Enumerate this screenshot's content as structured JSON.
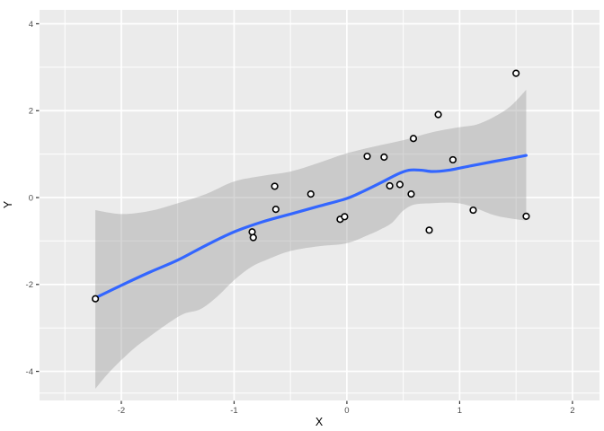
{
  "chart_data": {
    "type": "scatter",
    "title": "",
    "xlabel": "X",
    "ylabel": "Y",
    "legend": "none",
    "grid": true,
    "panel_style": "ggplot2-grey",
    "xlim": [
      -2.725,
      2.24
    ],
    "ylim": [
      -4.67,
      4.32
    ],
    "x_major_ticks": [
      -2,
      -1,
      0,
      1,
      2
    ],
    "y_major_ticks": [
      -4,
      -2,
      0,
      2,
      4
    ],
    "x_minor_ticks": [
      -2.5,
      -1.5,
      -0.5,
      0.5,
      1.5
    ],
    "y_minor_ticks": [
      -4.5,
      -3,
      -1,
      1,
      3
    ],
    "points": [
      [
        -2.23,
        -2.33
      ],
      [
        -0.84,
        -0.79
      ],
      [
        -0.83,
        -0.92
      ],
      [
        -0.64,
        0.26
      ],
      [
        -0.63,
        -0.27
      ],
      [
        -0.32,
        0.08
      ],
      [
        -0.06,
        -0.5
      ],
      [
        -0.02,
        -0.44
      ],
      [
        0.18,
        0.95
      ],
      [
        0.33,
        0.93
      ],
      [
        0.38,
        0.27
      ],
      [
        0.47,
        0.3
      ],
      [
        0.57,
        0.08
      ],
      [
        0.59,
        1.36
      ],
      [
        0.73,
        -0.75
      ],
      [
        0.81,
        1.91
      ],
      [
        0.94,
        0.87
      ],
      [
        1.12,
        -0.29
      ],
      [
        1.5,
        2.86
      ],
      [
        1.59,
        -0.43
      ]
    ],
    "smooth": {
      "method": "loess",
      "line": [
        [
          -2.23,
          -2.31
        ],
        [
          -2.0,
          -2.02
        ],
        [
          -1.75,
          -1.72
        ],
        [
          -1.5,
          -1.44
        ],
        [
          -1.25,
          -1.1
        ],
        [
          -1.0,
          -0.79
        ],
        [
          -0.75,
          -0.56
        ],
        [
          -0.5,
          -0.38
        ],
        [
          -0.25,
          -0.2
        ],
        [
          0.0,
          -0.02
        ],
        [
          0.15,
          0.15
        ],
        [
          0.3,
          0.34
        ],
        [
          0.45,
          0.54
        ],
        [
          0.55,
          0.63
        ],
        [
          0.66,
          0.63
        ],
        [
          0.76,
          0.6
        ],
        [
          0.9,
          0.63
        ],
        [
          1.1,
          0.73
        ],
        [
          1.3,
          0.83
        ],
        [
          1.45,
          0.9
        ],
        [
          1.59,
          0.97
        ]
      ],
      "ribbon_upper": [
        [
          -2.23,
          -0.29
        ],
        [
          -2.0,
          -0.38
        ],
        [
          -1.75,
          -0.31
        ],
        [
          -1.5,
          -0.13
        ],
        [
          -1.25,
          0.08
        ],
        [
          -1.0,
          0.37
        ],
        [
          -0.75,
          0.5
        ],
        [
          -0.5,
          0.6
        ],
        [
          -0.25,
          0.8
        ],
        [
          0.0,
          1.02
        ],
        [
          0.25,
          1.18
        ],
        [
          0.5,
          1.32
        ],
        [
          0.75,
          1.5
        ],
        [
          1.0,
          1.62
        ],
        [
          1.15,
          1.68
        ],
        [
          1.3,
          1.85
        ],
        [
          1.45,
          2.1
        ],
        [
          1.59,
          2.48
        ]
      ],
      "ribbon_lower": [
        [
          -2.23,
          -4.4
        ],
        [
          -2.1,
          -4.0
        ],
        [
          -1.9,
          -3.5
        ],
        [
          -1.75,
          -3.2
        ],
        [
          -1.6,
          -2.92
        ],
        [
          -1.45,
          -2.68
        ],
        [
          -1.3,
          -2.57
        ],
        [
          -1.15,
          -2.28
        ],
        [
          -1.0,
          -1.9
        ],
        [
          -0.85,
          -1.6
        ],
        [
          -0.7,
          -1.42
        ],
        [
          -0.5,
          -1.23
        ],
        [
          -0.25,
          -1.12
        ],
        [
          0.0,
          -1.05
        ],
        [
          0.2,
          -0.85
        ],
        [
          0.3,
          -0.73
        ],
        [
          0.4,
          -0.58
        ],
        [
          0.5,
          -0.3
        ],
        [
          0.6,
          -0.16
        ],
        [
          0.75,
          -0.13
        ],
        [
          0.95,
          -0.12
        ],
        [
          1.1,
          -0.2
        ],
        [
          1.3,
          -0.4
        ],
        [
          1.45,
          -0.48
        ],
        [
          1.59,
          -0.53
        ]
      ]
    },
    "colors": {
      "background": "#FFFFFF",
      "panel_bg": "#EBEBEB",
      "grid": "#FFFFFF",
      "ribbon": "#999999",
      "ribbon_alpha": 0.4,
      "line": "#3366FF",
      "point_fill": "#FFFFFF",
      "point_stroke": "#000000",
      "tick_label": "#4D4D4D",
      "tick_mark": "#333333",
      "axis_title": "#000000"
    }
  }
}
